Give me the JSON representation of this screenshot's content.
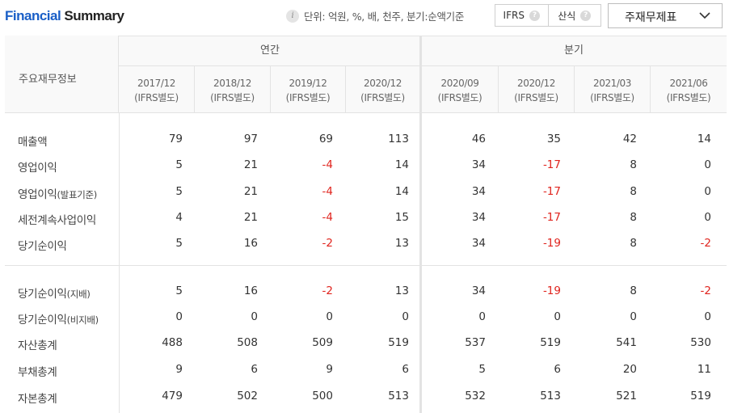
{
  "header": {
    "title_part1": "Financial",
    "title_part2": "Summary",
    "unit_text": "단위: 억원, %, 배, 천주, 분기:순액기준",
    "toggle_options": [
      "IFRS",
      "산식"
    ],
    "statement_select": "주재무제표"
  },
  "table": {
    "label_header": "주요재무정보",
    "groups": {
      "annual": "연간",
      "quarter": "분기"
    },
    "periods": [
      {
        "date": "2017/12",
        "basis": "(IFRS별도)"
      },
      {
        "date": "2018/12",
        "basis": "(IFRS별도)"
      },
      {
        "date": "2019/12",
        "basis": "(IFRS별도)"
      },
      {
        "date": "2020/12",
        "basis": "(IFRS별도)"
      },
      {
        "date": "2020/09",
        "basis": "(IFRS별도)"
      },
      {
        "date": "2020/12",
        "basis": "(IFRS별도)"
      },
      {
        "date": "2021/03",
        "basis": "(IFRS별도)"
      },
      {
        "date": "2021/06",
        "basis": "(IFRS별도)"
      }
    ],
    "rows": [
      {
        "label": "매출액",
        "suffix": "",
        "values": [
          "79",
          "97",
          "69",
          "113",
          "46",
          "35",
          "42",
          "14"
        ]
      },
      {
        "label": "영업이익",
        "suffix": "",
        "values": [
          "5",
          "21",
          "-4",
          "14",
          "34",
          "-17",
          "8",
          "0"
        ]
      },
      {
        "label": "영업이익",
        "suffix": "(발표기준)",
        "values": [
          "5",
          "21",
          "-4",
          "14",
          "34",
          "-17",
          "8",
          "0"
        ]
      },
      {
        "label": "세전계속사업이익",
        "suffix": "",
        "values": [
          "4",
          "21",
          "-4",
          "15",
          "34",
          "-17",
          "8",
          "0"
        ]
      },
      {
        "label": "당기순이익",
        "suffix": "",
        "values": [
          "5",
          "16",
          "-2",
          "13",
          "34",
          "-19",
          "8",
          "-2"
        ]
      },
      {
        "label": "당기순이익",
        "suffix": "(지배)",
        "values": [
          "5",
          "16",
          "-2",
          "13",
          "34",
          "-19",
          "8",
          "-2"
        ]
      },
      {
        "label": "당기순이익",
        "suffix": "(비지배)",
        "values": [
          "0",
          "0",
          "0",
          "0",
          "0",
          "0",
          "0",
          "0"
        ]
      },
      {
        "label": "자산총계",
        "suffix": "",
        "values": [
          "488",
          "508",
          "509",
          "519",
          "537",
          "519",
          "541",
          "530"
        ]
      },
      {
        "label": "부채총계",
        "suffix": "",
        "values": [
          "9",
          "6",
          "9",
          "6",
          "5",
          "6",
          "20",
          "11"
        ]
      },
      {
        "label": "자본총계",
        "suffix": "",
        "values": [
          "479",
          "502",
          "500",
          "513",
          "532",
          "513",
          "521",
          "519"
        ]
      }
    ]
  },
  "colors": {
    "title_accent": "#1a5fc7",
    "negative": "#e0241e"
  },
  "icons": {
    "unit_info": "info-icon",
    "help": "question-icon",
    "dropdown": "chevron-down-icon"
  }
}
